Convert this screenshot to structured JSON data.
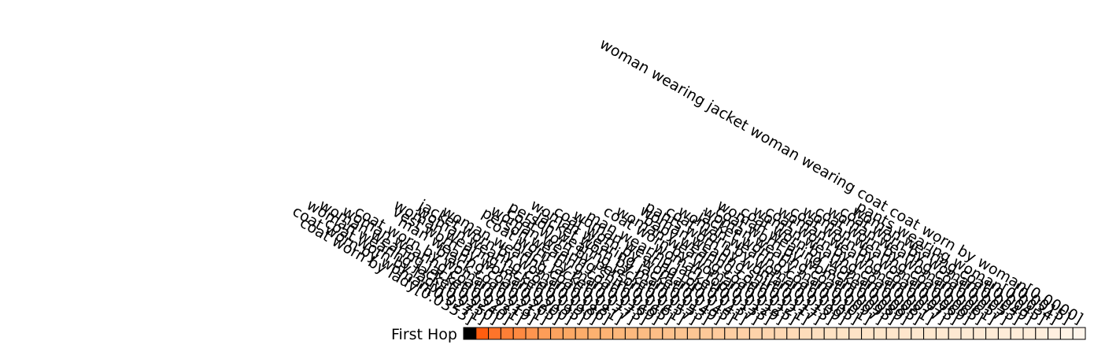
{
  "chart_data": {
    "type": "heatmap",
    "row_label": "First Hop",
    "colormap": "Oranges (reversed)",
    "colors": {
      "low": "#000000",
      "mid": "#ff5500",
      "high": "#fff5eb",
      "cell_border": "#000000"
    },
    "columns": [
      {
        "label": "coat worn by lady[0.0353]",
        "value": 0.0353
      },
      {
        "label": "coat worn by woman[0.0271]",
        "value": 0.0271
      },
      {
        "label": "coat worn by lady[0.0250]",
        "value": 0.025
      },
      {
        "label": "woman wearing jacket[0.0240]",
        "value": 0.024
      },
      {
        "label": "woman wearing jacket[0.0231]",
        "value": 0.0231
      },
      {
        "label": "woman wearing coat[0.0219]",
        "value": 0.0219
      },
      {
        "label": "coat worn by woman[0.0211]",
        "value": 0.0211
      },
      {
        "label": "black coat[0.0205]",
        "value": 0.0205
      },
      {
        "label": "man wearing coat[0.0200]",
        "value": 0.02
      },
      {
        "label": "vest worn by woman[0.0195]",
        "value": 0.0195
      },
      {
        "label": "woman wearing jacket[0.0190]",
        "value": 0.019
      },
      {
        "label": "woman wearing coat[0.0186]",
        "value": 0.0186
      },
      {
        "label": "jacket worn by woman[0.0181]",
        "value": 0.0181
      },
      {
        "label": "woman wearing coat[0.0177]",
        "value": 0.0177
      },
      {
        "label": "black jacket[0.0173]",
        "value": 0.0173
      },
      {
        "label": "coat worn by man[0.0169]",
        "value": 0.0169
      },
      {
        "label": "person wearing coat[0.0165]",
        "value": 0.0165
      },
      {
        "label": "woman wearing shirt[0.0161]",
        "value": 0.0161
      },
      {
        "label": "coat worn by person[0.0157]",
        "value": 0.0157
      },
      {
        "label": "person wearing jacket[0.0153]",
        "value": 0.0153
      },
      {
        "label": "jacket worn by man[0.0149]",
        "value": 0.0149
      },
      {
        "label": "woman wearing jacket[0.0145]",
        "value": 0.0145
      },
      {
        "label": "coat worn by woman[0.0141]",
        "value": 0.0141
      },
      {
        "label": "woman wearing top[0.0137]",
        "value": 0.0137
      },
      {
        "label": "man wearing jacket[0.0133]",
        "value": 0.0133
      },
      {
        "label": "woman top[0.0129]",
        "value": 0.0129
      },
      {
        "label": "coat worn by woman[0.0125]",
        "value": 0.0125
      },
      {
        "label": "woman wearing coat[0.0121]",
        "value": 0.0121
      },
      {
        "label": "baby wearing coat[0.0117]",
        "value": 0.0117
      },
      {
        "label": "woman wearing shirt[0.0113]",
        "value": 0.0113
      },
      {
        "label": "pants worn by woman[0.0109]",
        "value": 0.0109
      },
      {
        "label": "coat worn by woman[0.0105]",
        "value": 0.0105
      },
      {
        "label": "woman wearing coat[0.0101]",
        "value": 0.0101
      },
      {
        "label": "jacket worn by man[0.0097]",
        "value": 0.0097
      },
      {
        "label": "woman wearing coat[0.0093]",
        "value": 0.0093
      },
      {
        "label": "coat worn by woman[0.0089]",
        "value": 0.0089
      },
      {
        "label": "woman wearing jacket[0.0085]",
        "value": 0.0085
      },
      {
        "label": "coat worn by woman[0.0081]",
        "value": 0.0081
      },
      {
        "label": "woman wearing coat[0.0077]",
        "value": 0.0077
      },
      {
        "label": "coat worn by woman[0.0073]",
        "value": 0.0073
      },
      {
        "label": "woman wearing coat[0.0069]",
        "value": 0.0069
      },
      {
        "label": "coat worn by woman[0.0065]",
        "value": 0.0065
      },
      {
        "label": "woman wearing coat[0.0061]",
        "value": 0.0061
      },
      {
        "label": "coat worn by woman[0.0057]",
        "value": 0.0057
      },
      {
        "label": "woman wearing coat[0.0053]",
        "value": 0.0053
      },
      {
        "label": "coat worn by woman[0.0049]",
        "value": 0.0049
      },
      {
        "label": "woman wearing coat[0.0045]",
        "value": 0.0045
      },
      {
        "label": "pants wearing woman[0.0034]",
        "value": 0.0034
      },
      {
        "label": "[0.0015]",
        "value": 0.0015
      },
      {
        "label": "woman wearing jacket woman wearing coat coat worn by woman[0.0000]",
        "value": 0.0
      }
    ]
  }
}
